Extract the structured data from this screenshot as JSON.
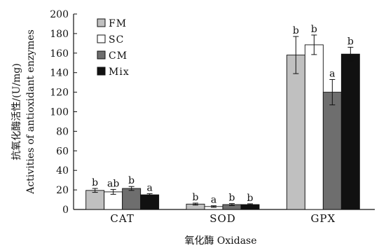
{
  "chart_data": {
    "type": "bar",
    "xlabel": "氧化酶 Oxidase",
    "ylabel_line1": "抗氧化酶活性/(U/mg)",
    "ylabel_line2": "Activities of antioxidant enzymes",
    "ylim": [
      0,
      200
    ],
    "yticks": [
      "0",
      "20",
      "40",
      "60",
      "80",
      "100",
      "120",
      "140",
      "160",
      "180",
      "200"
    ],
    "categories": [
      "CAT",
      "SOD",
      "GPX"
    ],
    "legend_position": "top-left",
    "series": [
      {
        "name": "FM",
        "color": "#c0c0c0",
        "values": [
          19.5,
          5.5,
          158
        ],
        "errors": [
          2,
          1,
          19
        ],
        "sig": [
          "b",
          "b",
          "b"
        ]
      },
      {
        "name": "SC",
        "color": "#ffffff",
        "values": [
          18,
          3,
          168.5
        ],
        "errors": [
          2.5,
          0.8,
          10
        ],
        "sig": [
          "ab",
          "a",
          "b"
        ]
      },
      {
        "name": "CM",
        "color": "#6e6e6e",
        "values": [
          21.5,
          5,
          120
        ],
        "errors": [
          2,
          1,
          13
        ],
        "sig": [
          "b",
          "b",
          "a"
        ]
      },
      {
        "name": "Mix",
        "color": "#111111",
        "values": [
          15,
          5,
          159
        ],
        "errors": [
          1.2,
          0.8,
          7
        ],
        "sig": [
          "a",
          "b",
          "b"
        ]
      }
    ]
  }
}
